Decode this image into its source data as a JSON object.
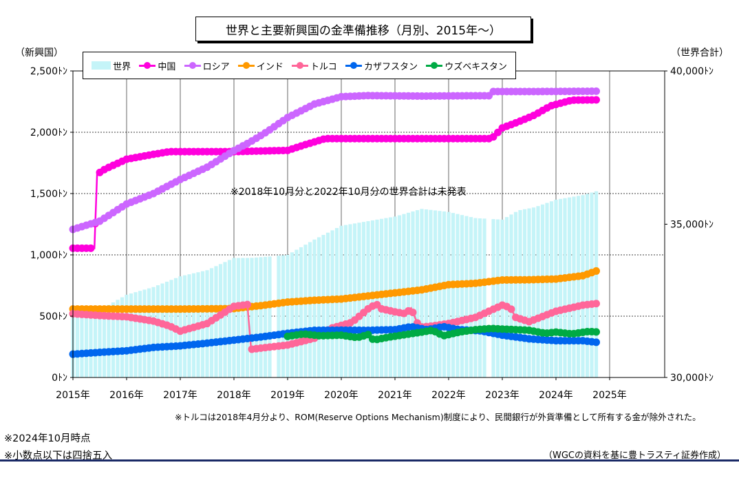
{
  "chart_data": {
    "type": "line",
    "title": "世界と主要新興国の金準備推移（月別、2015年～）",
    "left_axis_unit": "（新興国）",
    "right_axis_unit": "（世界合計）",
    "left_ticks": [
      "0ﾄﾝ",
      "500ﾄﾝ",
      "1,000ﾄﾝ",
      "1,500ﾄﾝ",
      "2,000ﾄﾝ",
      "2,500ﾄﾝ"
    ],
    "right_ticks": [
      "30,000ﾄﾝ",
      "35,000ﾄﾝ",
      "40,000ﾄﾝ"
    ],
    "x_ticks": [
      "2015年",
      "2016年",
      "2017年",
      "2018年",
      "2019年",
      "2020年",
      "2021年",
      "2022年",
      "2023年",
      "2024年",
      "2025年"
    ],
    "ylim_left": [
      0,
      2500
    ],
    "ylim_right": [
      30000,
      40000
    ],
    "x_range": [
      2015.0,
      2025.0
    ],
    "grid": "horizontal",
    "legend_position": "top",
    "series": [
      {
        "name": "世界",
        "kind": "bar",
        "axis": "right",
        "color": "#c5f4f8",
        "points": [
          [
            2015.0,
            32050
          ],
          [
            2015.5,
            32200
          ],
          [
            2016.0,
            32700
          ],
          [
            2016.5,
            32950
          ],
          [
            2017.0,
            33300
          ],
          [
            2017.5,
            33500
          ],
          [
            2018.0,
            33900
          ],
          [
            2018.3,
            33900
          ],
          [
            2018.7,
            33950
          ],
          [
            2019.0,
            34000
          ],
          [
            2019.5,
            34500
          ],
          [
            2020.0,
            34950
          ],
          [
            2020.5,
            35100
          ],
          [
            2021.0,
            35250
          ],
          [
            2021.5,
            35500
          ],
          [
            2022.0,
            35400
          ],
          [
            2022.5,
            35200
          ],
          [
            2023.0,
            35150
          ],
          [
            2023.3,
            35450
          ],
          [
            2023.6,
            35550
          ],
          [
            2024.0,
            35800
          ],
          [
            2024.5,
            35950
          ],
          [
            2024.8,
            36100
          ]
        ],
        "gaps": [
          2018.75,
          2022.75
        ]
      },
      {
        "name": "中国",
        "kind": "line",
        "axis": "left",
        "color": "#ff00dd",
        "points": [
          [
            2015.0,
            1054
          ],
          [
            2015.4,
            1054
          ],
          [
            2015.45,
            1658
          ],
          [
            2015.6,
            1700
          ],
          [
            2016.0,
            1780
          ],
          [
            2016.5,
            1820
          ],
          [
            2016.8,
            1842
          ],
          [
            2018.0,
            1842
          ],
          [
            2019.0,
            1852
          ],
          [
            2019.3,
            1895
          ],
          [
            2019.7,
            1948
          ],
          [
            2020.5,
            1948
          ],
          [
            2021.5,
            1948
          ],
          [
            2022.5,
            1948
          ],
          [
            2022.8,
            1948
          ],
          [
            2023.0,
            2035
          ],
          [
            2023.3,
            2085
          ],
          [
            2023.6,
            2140
          ],
          [
            2023.9,
            2215
          ],
          [
            2024.3,
            2262
          ],
          [
            2024.8,
            2264
          ]
        ]
      },
      {
        "name": "ロシア",
        "kind": "line",
        "axis": "left",
        "color": "#cc66ff",
        "points": [
          [
            2015.0,
            1208
          ],
          [
            2015.5,
            1275
          ],
          [
            2016.0,
            1415
          ],
          [
            2016.5,
            1500
          ],
          [
            2017.0,
            1615
          ],
          [
            2017.5,
            1715
          ],
          [
            2018.0,
            1850
          ],
          [
            2018.3,
            1920
          ],
          [
            2018.6,
            2000
          ],
          [
            2019.0,
            2120
          ],
          [
            2019.5,
            2230
          ],
          [
            2020.0,
            2290
          ],
          [
            2020.5,
            2299
          ],
          [
            2021.5,
            2295
          ],
          [
            2022.5,
            2298
          ],
          [
            2022.75,
            2298
          ],
          [
            2022.8,
            2332
          ],
          [
            2023.5,
            2332
          ],
          [
            2024.8,
            2335
          ]
        ]
      },
      {
        "name": "インド",
        "kind": "line",
        "axis": "left",
        "color": "#ff9900",
        "points": [
          [
            2015.0,
            558
          ],
          [
            2017.0,
            558
          ],
          [
            2018.0,
            562
          ],
          [
            2018.5,
            586
          ],
          [
            2019.0,
            615
          ],
          [
            2019.5,
            630
          ],
          [
            2020.0,
            640
          ],
          [
            2020.5,
            665
          ],
          [
            2021.0,
            690
          ],
          [
            2021.5,
            715
          ],
          [
            2022.0,
            757
          ],
          [
            2022.5,
            768
          ],
          [
            2023.0,
            795
          ],
          [
            2023.5,
            797
          ],
          [
            2024.0,
            803
          ],
          [
            2024.5,
            830
          ],
          [
            2024.8,
            876
          ]
        ]
      },
      {
        "name": "トルコ",
        "kind": "line",
        "axis": "left",
        "color": "#ff6699",
        "points": [
          [
            2015.0,
            520
          ],
          [
            2015.5,
            505
          ],
          [
            2016.0,
            495
          ],
          [
            2016.5,
            460
          ],
          [
            2016.8,
            420
          ],
          [
            2017.0,
            378
          ],
          [
            2017.5,
            440
          ],
          [
            2018.0,
            580
          ],
          [
            2018.25,
            595
          ],
          [
            2018.32,
            230
          ],
          [
            2019.0,
            265
          ],
          [
            2019.5,
            320
          ],
          [
            2019.8,
            400
          ],
          [
            2020.2,
            450
          ],
          [
            2020.5,
            560
          ],
          [
            2020.65,
            600
          ],
          [
            2020.75,
            560
          ],
          [
            2021.0,
            535
          ],
          [
            2021.2,
            520
          ],
          [
            2021.3,
            565
          ],
          [
            2021.45,
            410
          ],
          [
            2021.7,
            420
          ],
          [
            2022.0,
            440
          ],
          [
            2022.5,
            490
          ],
          [
            2022.8,
            550
          ],
          [
            2023.0,
            590
          ],
          [
            2023.15,
            570
          ],
          [
            2023.25,
            490
          ],
          [
            2023.5,
            455
          ],
          [
            2024.0,
            540
          ],
          [
            2024.5,
            590
          ],
          [
            2024.8,
            605
          ]
        ]
      },
      {
        "name": "カザフスタン",
        "kind": "line",
        "axis": "left",
        "color": "#0066ee",
        "points": [
          [
            2015.0,
            190
          ],
          [
            2015.5,
            205
          ],
          [
            2016.0,
            218
          ],
          [
            2016.5,
            245
          ],
          [
            2017.0,
            258
          ],
          [
            2017.5,
            280
          ],
          [
            2018.0,
            305
          ],
          [
            2018.5,
            330
          ],
          [
            2019.0,
            360
          ],
          [
            2019.5,
            385
          ],
          [
            2020.0,
            386
          ],
          [
            2020.5,
            385
          ],
          [
            2021.0,
            390
          ],
          [
            2021.3,
            415
          ],
          [
            2021.6,
            390
          ],
          [
            2021.9,
            415
          ],
          [
            2022.2,
            390
          ],
          [
            2022.6,
            380
          ],
          [
            2023.0,
            345
          ],
          [
            2023.5,
            315
          ],
          [
            2024.0,
            300
          ],
          [
            2024.5,
            300
          ],
          [
            2024.8,
            285
          ]
        ]
      },
      {
        "name": "ウズベキスタン",
        "kind": "line",
        "axis": "left",
        "color": "#00aa44",
        "points": [
          [
            2019.0,
            335
          ],
          [
            2019.3,
            355
          ],
          [
            2019.6,
            340
          ],
          [
            2020.0,
            345
          ],
          [
            2020.3,
            325
          ],
          [
            2020.5,
            350
          ],
          [
            2020.6,
            305
          ],
          [
            2020.9,
            330
          ],
          [
            2021.2,
            350
          ],
          [
            2021.5,
            370
          ],
          [
            2021.7,
            385
          ],
          [
            2021.9,
            340
          ],
          [
            2022.2,
            370
          ],
          [
            2022.5,
            390
          ],
          [
            2022.8,
            400
          ],
          [
            2023.0,
            395
          ],
          [
            2023.5,
            385
          ],
          [
            2023.8,
            360
          ],
          [
            2024.0,
            370
          ],
          [
            2024.3,
            355
          ],
          [
            2024.6,
            375
          ],
          [
            2024.8,
            370
          ]
        ]
      }
    ]
  },
  "annotations": {
    "missing_note": "※2018年10月分と2022年10月分の世界合計は未発表",
    "turkey_note": "※トルコは2018年4月分より、ROM(Reserve Options Mechanism)制度により、民間銀行が外貨準備として所有する金が除外された。",
    "as_of_note": "※2024年10月時点",
    "rounding_note": "※小数点以下は四捨五入",
    "source_note": "（WGCの資料を基に豊トラスティ証券作成）"
  }
}
